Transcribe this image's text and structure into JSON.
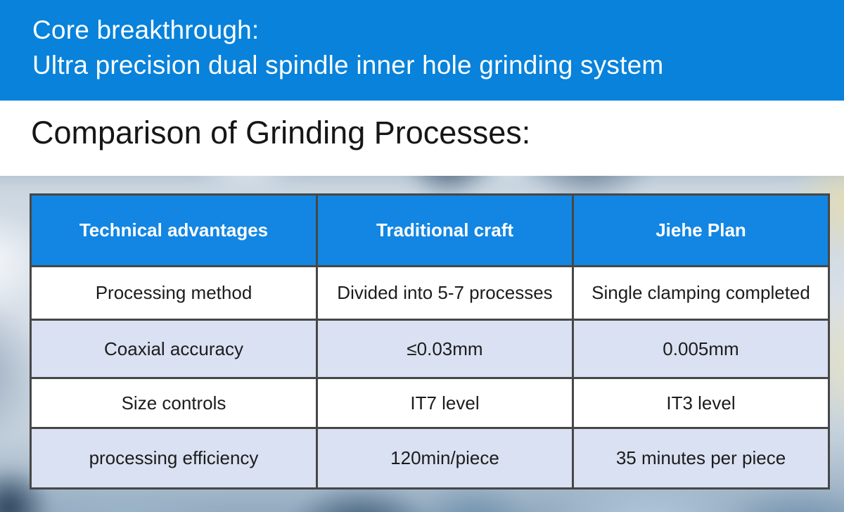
{
  "banner": {
    "line1": "Core breakthrough:",
    "line2": "Ultra precision dual spindle inner hole grinding system",
    "bg_color": "#0882DB",
    "text_color": "#FFFFFF"
  },
  "section": {
    "heading": "Comparison of Grinding Processes:"
  },
  "table": {
    "header_bg": "#1286E2",
    "header_text_color": "#FFFFFF",
    "alt_row_bg": "#D9E1F2",
    "border_color": "#474747",
    "columns": [
      "Technical advantages",
      "Traditional craft",
      "Jiehe Plan"
    ],
    "rows": [
      [
        "Processing method",
        "Divided into 5-7 processes",
        "Single clamping completed"
      ],
      [
        "Coaxial accuracy",
        "≤0.03mm",
        "0.005mm"
      ],
      [
        "Size controls",
        "IT7 level",
        "IT3 level"
      ],
      [
        "processing efficiency",
        "120min/piece",
        "35 minutes per piece"
      ]
    ]
  }
}
